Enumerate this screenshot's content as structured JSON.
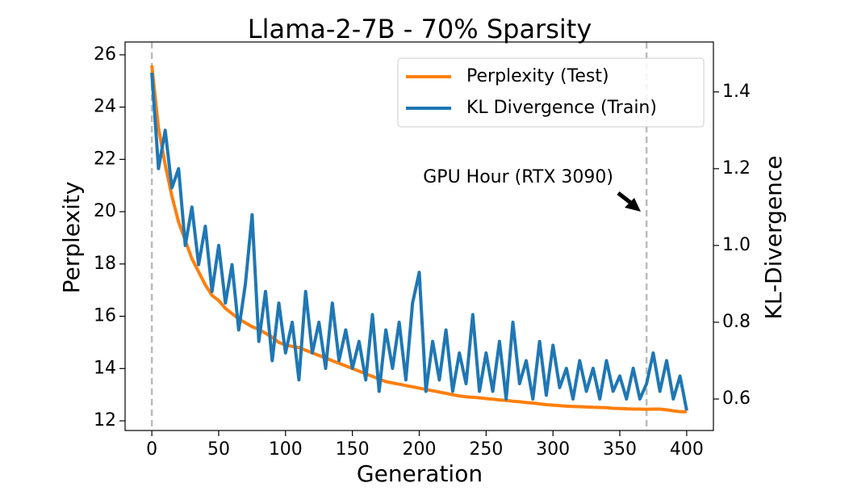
{
  "chart_data": {
    "type": "line",
    "title": "Llama-2-7B - 70% Sparsity",
    "xlabel": "Generation",
    "ylabel": "Perplexity",
    "y2label": "KL-Divergence",
    "annotation": "GPU Hour (RTX 3090)",
    "vlines": [
      0,
      370
    ],
    "legend": "upper right",
    "x": [
      0,
      5,
      10,
      15,
      20,
      25,
      30,
      35,
      40,
      45,
      50,
      55,
      60,
      65,
      70,
      75,
      80,
      85,
      90,
      95,
      100,
      105,
      110,
      115,
      120,
      125,
      130,
      135,
      140,
      145,
      150,
      155,
      160,
      165,
      170,
      175,
      180,
      185,
      190,
      195,
      200,
      205,
      210,
      215,
      220,
      225,
      230,
      235,
      240,
      245,
      250,
      255,
      260,
      265,
      270,
      275,
      280,
      285,
      290,
      295,
      300,
      305,
      310,
      315,
      320,
      325,
      330,
      335,
      340,
      345,
      350,
      355,
      360,
      365,
      370,
      375,
      380,
      385,
      390,
      395,
      400
    ],
    "series": [
      {
        "name": "Perplexity (Test)",
        "color": "#ff7f0e",
        "values": [
          25.6,
          23.2,
          21.8,
          20.6,
          19.6,
          18.9,
          18.2,
          17.7,
          17.2,
          16.8,
          16.6,
          16.3,
          16.1,
          15.9,
          15.75,
          15.6,
          15.5,
          15.35,
          15.2,
          15.0,
          14.9,
          14.85,
          14.8,
          14.7,
          14.6,
          14.5,
          14.4,
          14.3,
          14.2,
          14.1,
          14.0,
          13.9,
          13.8,
          13.7,
          13.6,
          13.5,
          13.45,
          13.4,
          13.35,
          13.3,
          13.25,
          13.2,
          13.15,
          13.1,
          13.05,
          13.0,
          12.95,
          12.92,
          12.9,
          12.88,
          12.85,
          12.83,
          12.8,
          12.78,
          12.75,
          12.73,
          12.7,
          12.68,
          12.65,
          12.62,
          12.6,
          12.58,
          12.56,
          12.55,
          12.54,
          12.53,
          12.52,
          12.51,
          12.5,
          12.48,
          12.47,
          12.46,
          12.45,
          12.45,
          12.44,
          12.45,
          12.45,
          12.42,
          12.38,
          12.35,
          12.35
        ]
      },
      {
        "name": "KL Divergence (Train)",
        "color": "#1f77b4",
        "axis": "y2",
        "values": [
          1.45,
          1.2,
          1.3,
          1.15,
          1.2,
          1.0,
          1.1,
          0.95,
          1.05,
          0.88,
          1.0,
          0.85,
          0.95,
          0.78,
          0.9,
          1.08,
          0.75,
          0.88,
          0.7,
          0.85,
          0.72,
          0.8,
          0.65,
          0.88,
          0.72,
          0.8,
          0.68,
          0.85,
          0.7,
          0.78,
          0.68,
          0.75,
          0.65,
          0.82,
          0.62,
          0.78,
          0.68,
          0.8,
          0.65,
          0.85,
          0.93,
          0.62,
          0.75,
          0.65,
          0.78,
          0.62,
          0.72,
          0.64,
          0.82,
          0.62,
          0.72,
          0.62,
          0.75,
          0.6,
          0.8,
          0.64,
          0.7,
          0.6,
          0.75,
          0.61,
          0.74,
          0.63,
          0.68,
          0.6,
          0.7,
          0.62,
          0.68,
          0.6,
          0.7,
          0.62,
          0.66,
          0.6,
          0.68,
          0.6,
          0.64,
          0.72,
          0.62,
          0.7,
          0.6,
          0.66,
          0.57
        ]
      }
    ],
    "xlim": [
      -20,
      420
    ],
    "xticks": [
      0,
      50,
      100,
      150,
      200,
      250,
      300,
      350,
      400
    ],
    "ylim": [
      11.63,
      26.49
    ],
    "yticks": [
      12,
      14,
      16,
      18,
      20,
      22,
      24,
      26
    ],
    "y2lim": [
      0.518,
      1.53
    ],
    "y2ticks": [
      0.6,
      0.8,
      {
        "value": 1,
        "label": "1.0"
      },
      1.2,
      1.4
    ]
  }
}
